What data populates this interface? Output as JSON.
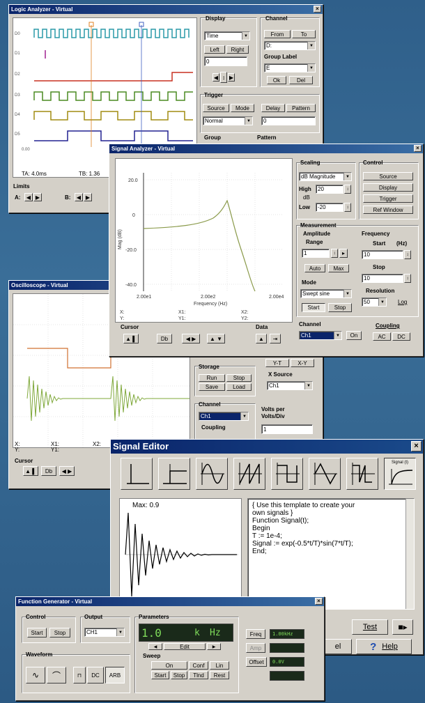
{
  "logic": {
    "title": "Logic Analyzer - Virtual",
    "display_label": "Display",
    "time_select": "Time",
    "left_btn": "Left",
    "right_btn": "Right",
    "cursor_value": "0",
    "channel_label": "Channel",
    "from_btn": "From",
    "to_btn": "To",
    "channel_select": "D:",
    "group_label_label": "Group Label",
    "group_label_select": "E",
    "ok_btn": "Ok",
    "del_btn": "Del",
    "trigger_label": "Trigger",
    "source_btn": "Source",
    "mode_btn": "Mode",
    "delay_btn": "Delay",
    "pattern_btn": "Pattern",
    "trigger_mode_select": "Normal",
    "delay_value": "0",
    "group_label": "Group",
    "pattern_label": "Pattern",
    "tb_left": "TA: 4.0ms",
    "tb_right": "TB: 1.36",
    "x_tick": "0.00",
    "limits_label": "Limits",
    "a_label": "A:",
    "b_label": "B:",
    "channel_labels": [
      "D0",
      "D1",
      "D2",
      "D3",
      "D4",
      "D5"
    ]
  },
  "analyzer": {
    "title": "Signal Analyzer - Virtual",
    "y_ticks": [
      "20.0",
      "0",
      "-20.0",
      "-40.0"
    ],
    "x_ticks": [
      "2.00e1",
      "2.00e2",
      "2.00e4"
    ],
    "xlabel": "Frequency (Hz)",
    "ylabel": "Mag (dB)",
    "readouts": [
      "X:",
      "Y:",
      "X1:",
      "Y1:",
      "X2:",
      "Y2:"
    ],
    "scaling_label": "Scaling",
    "scaling_select": "dB Magnitude",
    "high_label": "High",
    "db_label": "dB",
    "low_label": "Low",
    "high_value": "20",
    "low_value": "-20",
    "control_label": "Control",
    "source_btn": "Source",
    "display_btn": "Display",
    "trigger_btn": "Trigger",
    "ref_btn": "Ref Window",
    "measurement_label": "Measurement",
    "amplitude_label": "Amplitude",
    "range_label": "Range",
    "range_value": "1",
    "auto_btn": "Auto",
    "max_btn": "Max",
    "mode_label": "Mode",
    "mode_select": "Swept sine",
    "start_btn": "Start",
    "stop_btn": "Stop",
    "frequency_label": "Frequency",
    "start_hz_label": "Start",
    "hz_unit": "(Hz)",
    "start_value": "10",
    "stop_label": "Stop",
    "stop_value": "10",
    "resolution_label": "Resolution",
    "resolution_value": "50",
    "log_label": "Log",
    "channel_label": "Channel",
    "channel_select": "Ch1",
    "ch_toggle": "On",
    "coupling_label": "Coupling",
    "ac_btn": "AC",
    "dc_btn": "DC",
    "cursor_label": "Cursor",
    "data_label": "Data"
  },
  "scope": {
    "title": "Oscilloscope - Virtual",
    "readouts": [
      "X:",
      "Y:",
      "X1:",
      "Y1:",
      "X2:"
    ],
    "cursor_label": "Cursor",
    "storage_label": "Storage",
    "run_btn": "Run",
    "stop_btn": "Stop",
    "save_btn": "Save",
    "load_btn": "Load",
    "xy_btn": "Y-T",
    "xy2_btn": "X-Y",
    "source_label": "X Source",
    "source_select": "Ch1",
    "channel_label": "Channel",
    "channel_select": "Ch1",
    "coupling_label": "Coupling",
    "volts_label": "Volts per",
    "volts_label2": "Volts/Div",
    "volts_value": "1"
  },
  "editor": {
    "title": "Signal Editor",
    "icon_names": [
      "impulse-icon",
      "step-icon",
      "sine-icon",
      "sawtooth-icon",
      "square-icon",
      "triangle-icon",
      "pulse-icon",
      "custom-signal-icon"
    ],
    "custom_label": "Signal (t)",
    "max_label": "Max: 0.9",
    "code_lines": [
      "{ Use this template to create your",
      "   own signals }",
      "Function Signal(t);",
      "Begin",
      "   T := 1e-4;",
      "   Signal := exp(-0.5*t/T)*sin(7*t/T);",
      "End;"
    ],
    "test_btn": "Test",
    "help_btn": "Help",
    "cancel_btn": "el"
  },
  "fg": {
    "title": "Function Generator - Virtual",
    "control_label": "Control",
    "start_btn": "Start",
    "stop_btn": "Stop",
    "output_label": "Output",
    "output_select": "CH1",
    "waveform_label": "Waveform",
    "dc_btn": "DC",
    "arb_btn": "ARB",
    "params_label": "Parameters",
    "param_value": "1.0",
    "param_unit1": "k",
    "param_unit2": "Hz",
    "edit_btn": "Edit",
    "sweep_label": "Sweep",
    "on_btn": "On",
    "conf_btn": "Conf",
    "lin_btn": "Lin",
    "start2_btn": "Start",
    "stop2_btn": "Stop",
    "tlrnd_btn": "Tlnd",
    "rst_btn": "Rest",
    "freq_btn": "Freq",
    "freq_value": "1.00kHz",
    "amp_btn": "Amp",
    "offset_btn": "Offset",
    "offset_value": "0.0V"
  },
  "colors": {
    "background": "#2f5f8a",
    "titlebar": "#0a246a",
    "trace_green": "#7fa83a",
    "trace_cyan": "#2a9aa8",
    "trace_red": "#c83020",
    "trace_olive": "#a08c10",
    "trace_navy": "#202090"
  }
}
